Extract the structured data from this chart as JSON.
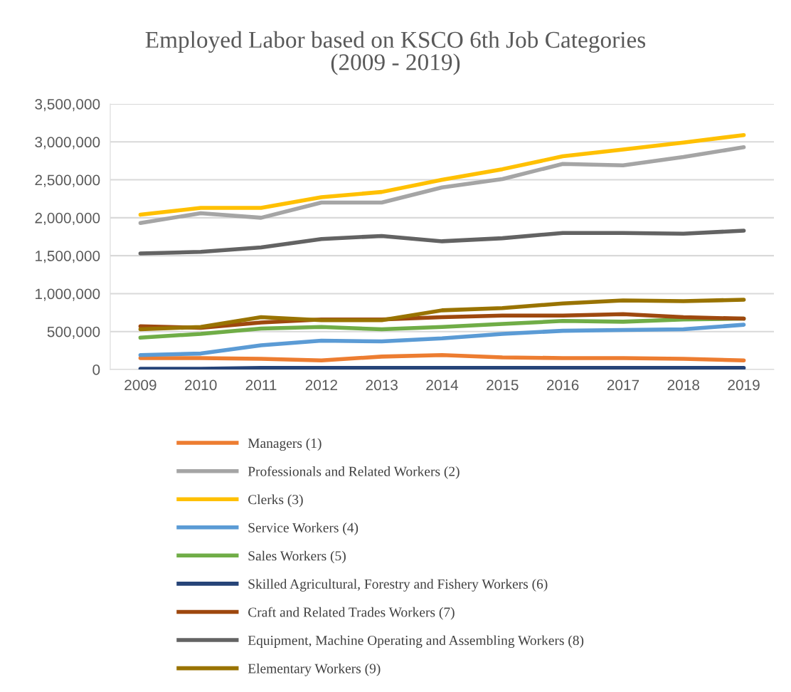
{
  "chart_data": {
    "type": "line",
    "title": "Employed Labor based on KSCO 6th Job Categories\n(2009 - 2019)",
    "categories": [
      "2009",
      "2010",
      "2011",
      "2012",
      "2013",
      "2014",
      "2015",
      "2016",
      "2017",
      "2018",
      "2019"
    ],
    "ylim": [
      0,
      3500000
    ],
    "yticks": [
      {
        "value": 0,
        "label": "0"
      },
      {
        "value": 500000,
        "label": "500,000"
      },
      {
        "value": 1000000,
        "label": "1,000,000"
      },
      {
        "value": 1500000,
        "label": "1,500,000"
      },
      {
        "value": 2000000,
        "label": "2,000,000"
      },
      {
        "value": 2500000,
        "label": "2,500,000"
      },
      {
        "value": 3000000,
        "label": "3,000,000"
      },
      {
        "value": 3500000,
        "label": "3,500,000"
      }
    ],
    "grid": "y",
    "legend": "bottom",
    "marker": "none",
    "line_style": "solid",
    "series": [
      {
        "name": "Managers (1)",
        "color": "#ed7d31",
        "values": [
          150000,
          150000,
          140000,
          120000,
          170000,
          190000,
          160000,
          150000,
          150000,
          140000,
          120000
        ]
      },
      {
        "name": "Professionals and Related Workers (2)",
        "color": "#a5a5a5",
        "values": [
          1930000,
          2060000,
          2000000,
          2200000,
          2200000,
          2400000,
          2510000,
          2710000,
          2690000,
          2800000,
          2930000
        ]
      },
      {
        "name": "Clerks (3)",
        "color": "#ffc000",
        "values": [
          2040000,
          2130000,
          2130000,
          2270000,
          2340000,
          2500000,
          2640000,
          2810000,
          2900000,
          2990000,
          3090000
        ]
      },
      {
        "name": "Service Workers (4)",
        "color": "#5b9bd5",
        "values": [
          190000,
          210000,
          320000,
          380000,
          370000,
          410000,
          470000,
          510000,
          520000,
          530000,
          590000
        ]
      },
      {
        "name": "Sales Workers (5)",
        "color": "#70ad47",
        "values": [
          420000,
          470000,
          540000,
          560000,
          530000,
          560000,
          600000,
          640000,
          630000,
          660000,
          670000
        ]
      },
      {
        "name": "Skilled Agricultural, Forestry and Fishery Workers (6)",
        "color": "#264478",
        "values": [
          10000,
          10000,
          20000,
          20000,
          20000,
          20000,
          20000,
          20000,
          20000,
          20000,
          20000
        ]
      },
      {
        "name": "Craft and Related Trades Workers (7)",
        "color": "#9e480e",
        "values": [
          570000,
          550000,
          620000,
          660000,
          660000,
          690000,
          710000,
          710000,
          730000,
          690000,
          670000
        ]
      },
      {
        "name": "Equipment, Machine Operating and Assembling Workers (8)",
        "color": "#636363",
        "values": [
          1530000,
          1550000,
          1610000,
          1720000,
          1760000,
          1690000,
          1730000,
          1800000,
          1800000,
          1790000,
          1830000
        ]
      },
      {
        "name": "Elementary Workers (9)",
        "color": "#997300",
        "values": [
          530000,
          560000,
          690000,
          650000,
          650000,
          780000,
          810000,
          870000,
          910000,
          900000,
          920000
        ]
      }
    ]
  }
}
